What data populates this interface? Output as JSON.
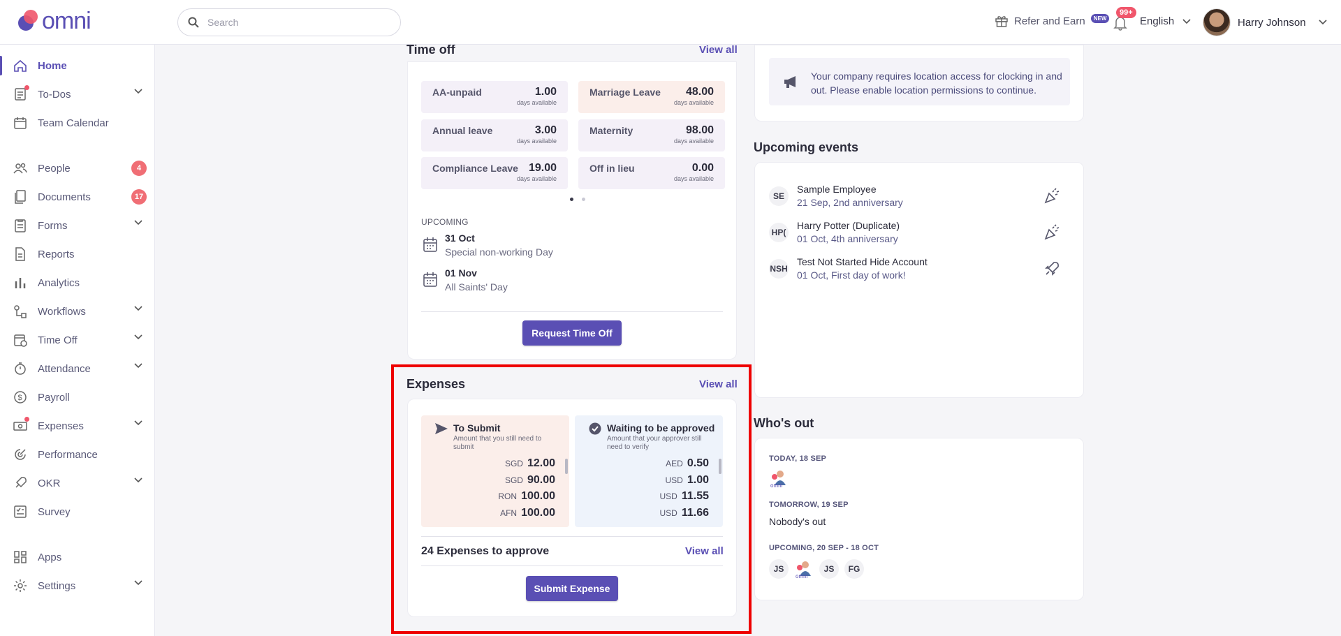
{
  "header": {
    "logo_text": "omni",
    "search_placeholder": "Search",
    "refer_label": "Refer and Earn",
    "refer_badge": "NEW",
    "notifications_badge": "99+",
    "language": "English",
    "user_name": "Harry Johnson"
  },
  "sidebar": {
    "items": [
      {
        "label": "Home",
        "icon": "home-icon",
        "active": true
      },
      {
        "label": "To-Dos",
        "icon": "checklist-icon",
        "has_chevron": true,
        "has_dot": true
      },
      {
        "label": "Team Calendar",
        "icon": "calendar-icon"
      },
      {
        "label": "People",
        "icon": "people-icon",
        "count": "4"
      },
      {
        "label": "Documents",
        "icon": "documents-icon",
        "count": "17"
      },
      {
        "label": "Forms",
        "icon": "form-icon",
        "has_chevron": true
      },
      {
        "label": "Reports",
        "icon": "report-icon"
      },
      {
        "label": "Analytics",
        "icon": "bar-chart-icon"
      },
      {
        "label": "Workflows",
        "icon": "workflow-icon",
        "has_chevron": true
      },
      {
        "label": "Time Off",
        "icon": "calendar-clock-icon",
        "has_chevron": true
      },
      {
        "label": "Attendance",
        "icon": "stopwatch-icon",
        "has_chevron": true
      },
      {
        "label": "Payroll",
        "icon": "dollar-icon"
      },
      {
        "label": "Expenses",
        "icon": "money-icon",
        "has_chevron": true,
        "has_dot": true
      },
      {
        "label": "Performance",
        "icon": "target-icon"
      },
      {
        "label": "OKR",
        "icon": "rocket-icon",
        "has_chevron": true
      },
      {
        "label": "Survey",
        "icon": "survey-icon"
      },
      {
        "label": "Apps",
        "icon": "apps-icon"
      },
      {
        "label": "Settings",
        "icon": "gear-icon",
        "has_chevron": true
      }
    ]
  },
  "timeoff": {
    "title": "Time off",
    "view_all": "View all",
    "sub_label": "days available",
    "tiles": [
      {
        "name": "AA-unpaid",
        "value": "1.00"
      },
      {
        "name": "Marriage Leave",
        "value": "48.00"
      },
      {
        "name": "Annual leave",
        "value": "3.00"
      },
      {
        "name": "Maternity",
        "value": "98.00"
      },
      {
        "name": "Compliance Leave",
        "value": "19.00"
      },
      {
        "name": "Off in lieu",
        "value": "0.00"
      }
    ],
    "upcoming_label": "UPCOMING",
    "upcoming": [
      {
        "date": "31 Oct",
        "name": "Special non-working Day"
      },
      {
        "date": "01 Nov",
        "name": "All Saints' Day"
      }
    ],
    "request_button": "Request Time Off"
  },
  "expenses": {
    "title": "Expenses",
    "view_all": "View all",
    "to_submit": {
      "title": "To Submit",
      "desc": "Amount that you still need to submit",
      "rows": [
        {
          "cur": "SGD",
          "amt": "12.00"
        },
        {
          "cur": "SGD",
          "amt": "90.00"
        },
        {
          "cur": "RON",
          "amt": "100.00"
        },
        {
          "cur": "AFN",
          "amt": "100.00"
        }
      ]
    },
    "waiting": {
      "title": "Waiting to be approved",
      "desc": "Amount that your approver still need to verify",
      "rows": [
        {
          "cur": "AED",
          "amt": "0.50"
        },
        {
          "cur": "USD",
          "amt": "1.00"
        },
        {
          "cur": "USD",
          "amt": "11.55"
        },
        {
          "cur": "USD",
          "amt": "11.66"
        }
      ]
    },
    "approve_count": "24 Expenses to approve",
    "approve_view_all": "View all",
    "submit_button": "Submit Expense"
  },
  "location_notice": "Your company requires location access for clocking in and out. Please enable location permissions to continue.",
  "events": {
    "title": "Upcoming events",
    "items": [
      {
        "initials": "SE",
        "name": "Sample Employee",
        "sub": "21 Sep, 2nd anniversary",
        "icon": "party-popper-icon"
      },
      {
        "initials": "HP(",
        "name": "Harry Potter (Duplicate)",
        "sub": "01 Oct, 4th anniversary",
        "icon": "party-popper-icon"
      },
      {
        "initials": "NSH",
        "name": "Test Not Started Hide Account",
        "sub": "01 Oct, First day of work!",
        "icon": "rocket-icon"
      }
    ]
  },
  "whos_out": {
    "title": "Who's out",
    "today_label": "TODAY, 18 SEP",
    "tomorrow_label": "TOMORROW, 19 SEP",
    "tomorrow_text": "Nobody's out",
    "upcoming_label": "UPCOMING, 20 SEP - 18 OCT",
    "upcoming_avatars": [
      "JS",
      "JS",
      "FG"
    ]
  },
  "colors": {
    "accent": "#5a4fb4",
    "badge": "#f06e75",
    "highlight": "#ee0000"
  }
}
